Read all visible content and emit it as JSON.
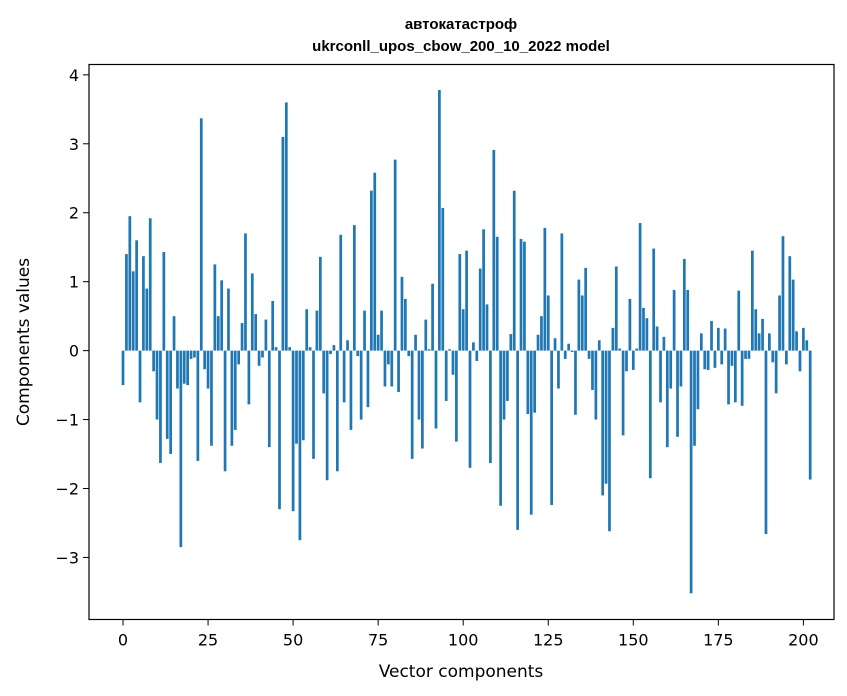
{
  "chart_data": {
    "type": "bar",
    "title_line1": "автокатастроф",
    "title_line2": "ukrconll_upos_cbow_200_10_2022 model",
    "xlabel": "Vector components",
    "ylabel": "Components values",
    "xlim": [
      -10,
      209
    ],
    "ylim": [
      -3.9,
      4.15
    ],
    "xticks": [
      0,
      25,
      50,
      75,
      100,
      125,
      150,
      175,
      200
    ],
    "yticks": [
      -3,
      -2,
      -1,
      0,
      1,
      2,
      3,
      4
    ],
    "bar_color": "#1f77b4",
    "values": [
      -0.5,
      1.4,
      1.95,
      1.15,
      1.6,
      -0.75,
      1.37,
      0.9,
      1.92,
      -0.3,
      -1.0,
      -1.63,
      1.43,
      -1.28,
      -1.5,
      0.5,
      -0.55,
      -2.85,
      -0.48,
      -0.5,
      -0.12,
      -0.1,
      -1.6,
      3.37,
      -0.27,
      -0.55,
      -1.38,
      1.25,
      0.5,
      1.02,
      -1.75,
      0.9,
      -1.38,
      -1.15,
      -0.2,
      0.4,
      1.7,
      -0.78,
      1.12,
      0.53,
      -0.22,
      -0.1,
      0.45,
      -1.4,
      0.72,
      0.05,
      -2.3,
      3.1,
      3.6,
      0.05,
      -2.33,
      -1.35,
      -2.75,
      -1.3,
      0.6,
      0.05,
      -1.57,
      0.58,
      1.36,
      -0.62,
      -1.88,
      -0.05,
      0.08,
      -1.75,
      1.68,
      -0.75,
      0.15,
      -1.15,
      1.82,
      -0.08,
      -1.0,
      0.58,
      -0.82,
      2.32,
      2.58,
      0.23,
      0.58,
      -0.52,
      -0.2,
      -0.52,
      2.77,
      -0.6,
      1.07,
      0.75,
      -0.08,
      -1.57,
      0.23,
      -1.0,
      -1.42,
      0.45,
      0.02,
      0.97,
      -1.13,
      3.78,
      2.07,
      -0.73,
      0.02,
      -0.35,
      -1.32,
      1.4,
      0.6,
      1.45,
      -1.7,
      0.12,
      -0.15,
      1.19,
      1.76,
      0.67,
      -1.63,
      2.91,
      1.65,
      -2.25,
      -1.0,
      -0.73,
      0.24,
      2.32,
      -2.6,
      1.62,
      1.58,
      -0.92,
      -2.38,
      -0.9,
      0.23,
      0.5,
      1.78,
      0.8,
      -2.24,
      0.18,
      -0.55,
      1.7,
      -0.12,
      0.1,
      -0.02,
      -0.93,
      1.03,
      0.8,
      1.2,
      -0.12,
      -0.57,
      -1.0,
      0.15,
      -2.1,
      -1.93,
      -2.62,
      0.33,
      1.22,
      0.03,
      -1.23,
      -0.3,
      0.75,
      -0.28,
      0.03,
      1.85,
      0.62,
      0.47,
      -1.85,
      1.48,
      0.35,
      -0.75,
      0.2,
      -1.4,
      -0.55,
      0.88,
      -1.25,
      -0.52,
      1.33,
      0.88,
      -3.52,
      -1.38,
      -0.85,
      0.25,
      -0.27,
      -0.28,
      0.43,
      -0.25,
      0.33,
      -0.2,
      0.32,
      -0.78,
      -0.22,
      -0.75,
      0.87,
      -0.8,
      -0.12,
      -0.12,
      1.45,
      0.6,
      0.25,
      0.46,
      -2.66,
      0.25,
      -0.17,
      -0.62,
      0.8,
      1.66,
      -0.2,
      1.37,
      1.03,
      0.28,
      -0.3,
      0.33,
      0.15,
      -1.87
    ]
  }
}
